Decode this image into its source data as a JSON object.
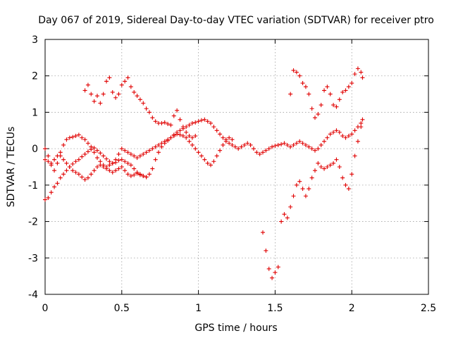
{
  "chart_data": {
    "type": "scatter",
    "title": "Day 067 of 2019, Sidereal Day-to-day VTEC variation (SDTVAR) for receiver ptro",
    "xlabel": "GPS time / hours",
    "ylabel": "SDTVAR / TECUs",
    "xlim": [
      0,
      2.5
    ],
    "ylim": [
      -4,
      3
    ],
    "xticks": [
      0,
      0.5,
      1,
      1.5,
      2,
      2.5
    ],
    "xtick_labels": [
      "0",
      "0.5",
      "1",
      "1.5",
      "2",
      "2.5"
    ],
    "yticks": [
      -4,
      -3,
      -2,
      -1,
      0,
      1,
      2,
      3
    ],
    "ytick_labels": [
      "-4",
      "-3",
      "-2",
      "-1",
      "0",
      "1",
      "2",
      "3"
    ],
    "grid": true,
    "marker": "+",
    "color": "#e00000",
    "series": [
      {
        "name": "track-rising-main",
        "x": [
          0.0,
          0.02,
          0.04,
          0.06,
          0.08,
          0.1,
          0.12,
          0.14,
          0.16,
          0.18,
          0.2,
          0.22,
          0.24,
          0.26,
          0.28,
          0.3,
          0.32,
          0.34,
          0.36,
          0.38,
          0.4,
          0.42,
          0.44,
          0.46,
          0.48,
          0.5,
          0.52,
          0.54,
          0.56,
          0.58,
          0.6,
          0.62,
          0.64,
          0.66,
          0.68,
          0.7,
          0.72,
          0.74,
          0.76,
          0.78,
          0.8,
          0.82,
          0.84,
          0.86,
          0.88,
          0.9,
          0.92,
          0.94,
          0.96,
          0.98,
          1.0,
          1.02,
          1.04,
          1.06,
          1.08,
          1.1,
          1.12,
          1.14,
          1.16,
          1.18,
          1.2,
          1.22,
          1.24,
          1.26,
          1.28,
          1.3,
          1.32,
          1.34,
          1.36,
          1.38,
          1.4,
          1.42,
          1.44,
          1.46,
          1.48,
          1.5,
          1.52,
          1.54,
          1.56,
          1.58,
          1.6,
          1.62,
          1.64,
          1.66,
          1.68,
          1.7,
          1.72,
          1.74,
          1.76,
          1.78,
          1.8,
          1.82,
          1.84,
          1.86,
          1.88,
          1.9,
          1.92,
          1.94,
          1.96,
          1.98,
          2.0,
          2.02,
          2.04,
          2.06,
          2.07
        ],
        "y": [
          -1.4,
          -1.35,
          -1.2,
          -1.05,
          -0.95,
          -0.8,
          -0.7,
          -0.6,
          -0.5,
          -0.42,
          -0.35,
          -0.3,
          -0.22,
          -0.15,
          -0.08,
          -0.02,
          0.02,
          -0.05,
          -0.12,
          -0.2,
          -0.28,
          -0.35,
          -0.4,
          -0.38,
          -0.32,
          -0.3,
          -0.35,
          -0.4,
          -0.45,
          -0.55,
          -0.65,
          -0.72,
          -0.75,
          -0.78,
          -0.7,
          -0.55,
          -0.3,
          -0.1,
          0.05,
          0.15,
          0.22,
          0.3,
          0.38,
          0.45,
          0.5,
          0.55,
          0.6,
          0.65,
          0.7,
          0.72,
          0.75,
          0.78,
          0.8,
          0.75,
          0.7,
          0.6,
          0.5,
          0.4,
          0.3,
          0.2,
          0.15,
          0.1,
          0.05,
          0.0,
          0.05,
          0.1,
          0.15,
          0.1,
          0.0,
          -0.1,
          -0.15,
          -0.1,
          -0.05,
          0.0,
          0.05,
          0.08,
          0.1,
          0.12,
          0.15,
          0.1,
          0.05,
          0.1,
          0.15,
          0.2,
          0.15,
          0.1,
          0.05,
          0.0,
          -0.05,
          0.0,
          0.1,
          0.2,
          0.3,
          0.4,
          0.45,
          0.5,
          0.45,
          0.35,
          0.3,
          0.35,
          0.4,
          0.5,
          0.6,
          0.7,
          0.8
        ]
      },
      {
        "name": "track-falling-main",
        "x": [
          0.0,
          0.02,
          0.04,
          0.06,
          0.08,
          0.1,
          0.12,
          0.14,
          0.16,
          0.18,
          0.2,
          0.22,
          0.24,
          0.26,
          0.28,
          0.3,
          0.32,
          0.34,
          0.36,
          0.38,
          0.4,
          0.42,
          0.44,
          0.46,
          0.48,
          0.5,
          0.52,
          0.54,
          0.56,
          0.58,
          0.6,
          0.62,
          0.64,
          0.66,
          0.68,
          0.7,
          0.72,
          0.74,
          0.76,
          0.78,
          0.8,
          0.82,
          0.84,
          0.86,
          0.88,
          0.9,
          0.92,
          0.94,
          0.96,
          0.98,
          1.0,
          1.02,
          1.04,
          1.06,
          1.08,
          1.1,
          1.12,
          1.14,
          1.16,
          1.18,
          1.2,
          1.22
        ],
        "y": [
          -0.3,
          -0.35,
          -0.4,
          -0.3,
          -0.2,
          -0.1,
          0.1,
          0.25,
          0.3,
          0.32,
          0.35,
          0.38,
          0.3,
          0.25,
          0.15,
          0.05,
          -0.1,
          -0.25,
          -0.35,
          -0.45,
          -0.5,
          -0.45,
          -0.4,
          -0.3,
          -0.15,
          0.0,
          -0.05,
          -0.1,
          -0.15,
          -0.2,
          -0.25,
          -0.2,
          -0.15,
          -0.1,
          -0.05,
          0.0,
          0.05,
          0.1,
          0.15,
          0.2,
          0.25,
          0.3,
          0.35,
          0.4,
          0.38,
          0.35,
          0.3,
          0.2,
          0.1,
          0.0,
          -0.1,
          -0.2,
          -0.3,
          -0.4,
          -0.45,
          -0.35,
          -0.2,
          -0.05,
          0.1,
          0.25,
          0.3,
          0.25
        ]
      },
      {
        "name": "track-low-left",
        "x": [
          0.0,
          0.02,
          0.04,
          0.06,
          0.08,
          0.1,
          0.12,
          0.14,
          0.16,
          0.18,
          0.2,
          0.22,
          0.24,
          0.26,
          0.28,
          0.3,
          0.32,
          0.34,
          0.36,
          0.38,
          0.4,
          0.42,
          0.44,
          0.46,
          0.48,
          0.5,
          0.52,
          0.54,
          0.56,
          0.58,
          0.6,
          0.62,
          0.64,
          0.66
        ],
        "y": [
          0.0,
          -0.2,
          -0.45,
          -0.6,
          -0.4,
          -0.2,
          -0.3,
          -0.4,
          -0.5,
          -0.6,
          -0.65,
          -0.7,
          -0.78,
          -0.85,
          -0.8,
          -0.7,
          -0.6,
          -0.5,
          -0.45,
          -0.5,
          -0.55,
          -0.6,
          -0.65,
          -0.6,
          -0.55,
          -0.5,
          -0.6,
          -0.7,
          -0.75,
          -0.72,
          -0.68,
          -0.7,
          -0.75,
          -0.78
        ]
      },
      {
        "name": "track-upper-left",
        "x": [
          0.26,
          0.28,
          0.3,
          0.32,
          0.34,
          0.36,
          0.38,
          0.4,
          0.42,
          0.44,
          0.46,
          0.48,
          0.5,
          0.52,
          0.54,
          0.56,
          0.58,
          0.6,
          0.62,
          0.64,
          0.66,
          0.68,
          0.7,
          0.72,
          0.74,
          0.76,
          0.78,
          0.8,
          0.82,
          0.84,
          0.86,
          0.88,
          0.9,
          0.92,
          0.94,
          0.96,
          0.98
        ],
        "y": [
          1.6,
          1.75,
          1.5,
          1.3,
          1.45,
          1.25,
          1.5,
          1.85,
          1.95,
          1.55,
          1.4,
          1.5,
          1.75,
          1.85,
          1.95,
          1.7,
          1.55,
          1.45,
          1.35,
          1.25,
          1.1,
          1.0,
          0.85,
          0.75,
          0.7,
          0.7,
          0.72,
          0.68,
          0.65,
          0.9,
          1.05,
          0.8,
          0.6,
          0.45,
          0.35,
          0.3,
          0.35
        ]
      },
      {
        "name": "track-dip-right",
        "x": [
          1.42,
          1.44,
          1.46,
          1.48,
          1.5,
          1.52,
          1.54,
          1.56,
          1.58,
          1.6,
          1.62,
          1.64,
          1.66,
          1.68,
          1.7,
          1.72,
          1.74,
          1.76,
          1.78,
          1.8,
          1.82,
          1.84,
          1.86,
          1.88,
          1.9,
          1.92,
          1.94,
          1.96,
          1.98,
          2.0,
          2.02,
          2.04,
          2.06
        ],
        "y": [
          -2.3,
          -2.8,
          -3.3,
          -3.55,
          -3.4,
          -3.25,
          -2.0,
          -1.8,
          -1.9,
          -1.6,
          -1.3,
          -1.0,
          -0.9,
          -1.1,
          -1.3,
          -1.1,
          -0.8,
          -0.6,
          -0.4,
          -0.5,
          -0.55,
          -0.5,
          -0.45,
          -0.4,
          -0.3,
          -0.5,
          -0.8,
          -1.0,
          -1.1,
          -0.7,
          -0.2,
          0.2,
          0.6
        ]
      },
      {
        "name": "track-upper-right",
        "x": [
          1.6,
          1.62,
          1.64,
          1.66,
          1.68,
          1.7,
          1.72,
          1.74,
          1.76,
          1.78,
          1.8,
          1.82,
          1.84,
          1.86,
          1.88,
          1.9,
          1.92,
          1.94,
          1.96,
          1.98,
          2.0,
          2.02,
          2.04,
          2.06,
          2.07
        ],
        "y": [
          1.5,
          2.15,
          2.1,
          2.0,
          1.8,
          1.7,
          1.5,
          1.1,
          0.85,
          0.95,
          1.2,
          1.6,
          1.7,
          1.5,
          1.2,
          1.15,
          1.35,
          1.55,
          1.6,
          1.7,
          1.8,
          2.05,
          2.2,
          2.1,
          1.95
        ]
      }
    ]
  }
}
